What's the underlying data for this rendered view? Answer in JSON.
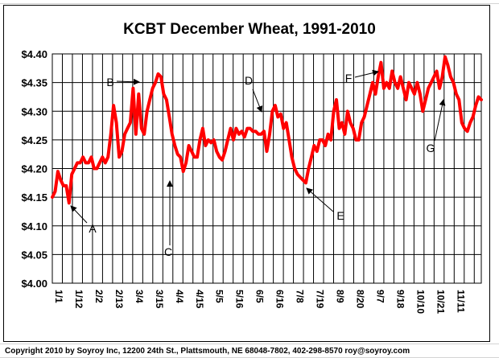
{
  "chart_data": {
    "type": "line",
    "title": "KCBT December Wheat, 1991-2010",
    "xlabel": "",
    "ylabel": "",
    "ylim": [
      4.0,
      4.4
    ],
    "yticks": [
      4.0,
      4.05,
      4.1,
      4.15,
      4.2,
      4.25,
      4.3,
      4.35,
      4.4
    ],
    "ytick_labels": [
      "$4.00",
      "$4.05",
      "$4.10",
      "$4.15",
      "$4.20",
      "$4.25",
      "$4.30",
      "$4.35",
      "$4.40"
    ],
    "xtick_labels": [
      "1/1",
      "1/12",
      "2/2",
      "2/13",
      "3/4",
      "3/15",
      "4/4",
      "4/15",
      "5/5",
      "5/16",
      "6/5",
      "6/16",
      "7/8",
      "7/19",
      "8/9",
      "8/20",
      "9/7",
      "9/18",
      "10/10",
      "10/21",
      "11/11"
    ],
    "grid": true,
    "line_color": "#ff0000",
    "series": [
      {
        "values": [
          4.15,
          4.16,
          4.195,
          4.18,
          4.17,
          4.17,
          4.14,
          4.19,
          4.2,
          4.21,
          4.21,
          4.22,
          4.21,
          4.21,
          4.22,
          4.2,
          4.2,
          4.21,
          4.22,
          4.21,
          4.22,
          4.26,
          4.31,
          4.28,
          4.22,
          4.23,
          4.26,
          4.27,
          4.28,
          4.34,
          4.26,
          4.33,
          4.27,
          4.26,
          4.3,
          4.32,
          4.34,
          4.35,
          4.365,
          4.36,
          4.33,
          4.32,
          4.29,
          4.26,
          4.24,
          4.225,
          4.22,
          4.195,
          4.21,
          4.24,
          4.23,
          4.22,
          4.22,
          4.25,
          4.27,
          4.24,
          4.25,
          4.245,
          4.25,
          4.23,
          4.22,
          4.215,
          4.23,
          4.25,
          4.27,
          4.25,
          4.27,
          4.26,
          4.265,
          4.255,
          4.27,
          4.27,
          4.265,
          4.265,
          4.26,
          4.26,
          4.265,
          4.23,
          4.26,
          4.3,
          4.31,
          4.29,
          4.295,
          4.27,
          4.28,
          4.25,
          4.22,
          4.2,
          4.19,
          4.185,
          4.18,
          4.175,
          4.2,
          4.22,
          4.24,
          4.23,
          4.25,
          4.25,
          4.24,
          4.26,
          4.25,
          4.3,
          4.32,
          4.27,
          4.28,
          4.26,
          4.3,
          4.28,
          4.27,
          4.25,
          4.25,
          4.28,
          4.29,
          4.31,
          4.33,
          4.35,
          4.33,
          4.36,
          4.385,
          4.34,
          4.35,
          4.34,
          4.37,
          4.35,
          4.34,
          4.36,
          4.34,
          4.32,
          4.35,
          4.34,
          4.33,
          4.35,
          4.33,
          4.3,
          4.32,
          4.34,
          4.35,
          4.36,
          4.37,
          4.34,
          4.36,
          4.395,
          4.38,
          4.36,
          4.35,
          4.33,
          4.32,
          4.28,
          4.27,
          4.265,
          4.28,
          4.29,
          4.31,
          4.325,
          4.32
        ]
      }
    ],
    "annotations": [
      {
        "label": "A"
      },
      {
        "label": "B"
      },
      {
        "label": "C"
      },
      {
        "label": "D"
      },
      {
        "label": "E"
      },
      {
        "label": "F"
      },
      {
        "label": "G"
      }
    ]
  },
  "footer": {
    "copyright": "Copyright 2010 by Soyroy Inc, 12200 24th St., Plattsmouth, NE 68048-7802, 402-298-8570 roy@soyroy.com"
  }
}
